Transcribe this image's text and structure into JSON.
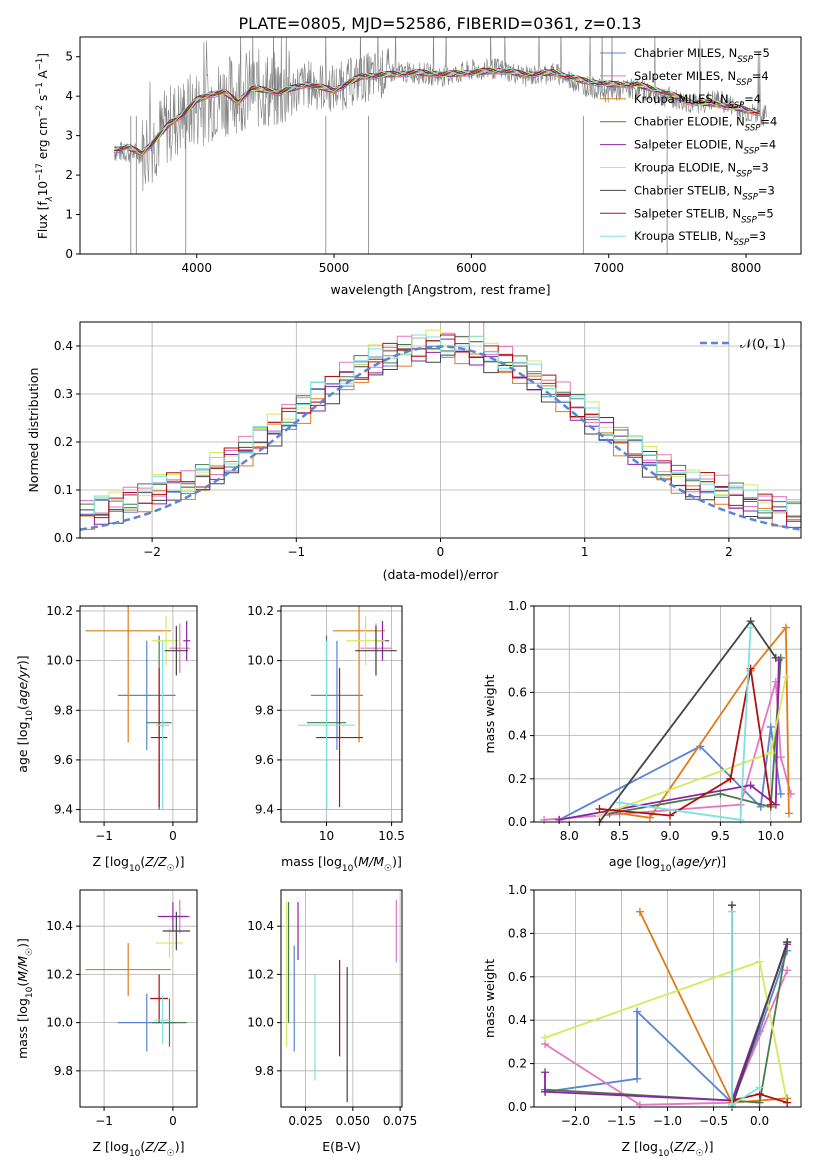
{
  "figure_title": "PLATE=0805, MJD=52586, FIBERID=0361, z=0.13",
  "colors": {
    "chabrier_miles": "#5b84d4",
    "salpeter_miles": "#e377c2",
    "kroupa_miles": "#e07b1a",
    "chabrier_elodie": "#4a7a4a",
    "salpeter_elodie": "#8b22a8",
    "kroupa_elodie": "#d4ea5a",
    "chabrier_stelib": "#444444",
    "salpeter_stelib": "#b21010",
    "kroupa_stelib": "#7ee0e0",
    "data": "#808080",
    "grid": "#b0b0b0"
  },
  "chart_data": [
    {
      "type": "line",
      "title": "PLATE=0805, MJD=52586, FIBERID=0361, z=0.13",
      "xlabel": "wavelength [Angstrom, rest frame]",
      "ylabel": "Flux [f_λ 10⁻¹⁷ erg cm⁻² s⁻¹ A⁻¹]",
      "ylabel_parts": [
        "Flux [f",
        "λ",
        "10",
        "−17",
        " erg cm",
        "−2",
        " s",
        "−1",
        " A",
        "−1",
        "]"
      ],
      "xlim": [
        3150,
        8400
      ],
      "ylim": [
        0,
        5.5
      ],
      "xticks": [
        4000,
        5000,
        6000,
        7000,
        8000
      ],
      "yticks": [
        0,
        1,
        2,
        3,
        4,
        5
      ],
      "grid": false,
      "legend_position": "right",
      "data_series": {
        "x": [
          3400,
          3600,
          3800,
          4000,
          4200,
          4400,
          4600,
          4800,
          5000,
          5200,
          5400,
          5600,
          5800,
          6000,
          6200,
          6400,
          6600,
          6800,
          7000,
          7200,
          7400,
          7600,
          7800,
          8000,
          8100
        ],
        "y": [
          2.6,
          2.55,
          3.3,
          3.7,
          4.0,
          4.2,
          4.1,
          4.3,
          4.2,
          4.45,
          4.6,
          4.6,
          4.5,
          4.65,
          4.7,
          4.5,
          4.6,
          4.3,
          4.1,
          4.2,
          4.0,
          3.8,
          3.9,
          3.6,
          3.5
        ]
      },
      "model_series": [
        {
          "name": "Chabrier MILES, N_SSP=5",
          "name_parts": [
            "Chabrier MILES, N",
            "SSP",
            "=5"
          ],
          "color_key": "chabrier_miles"
        },
        {
          "name": "Salpeter MILES, N_SSP=4",
          "name_parts": [
            "Salpeter MILES, N",
            "SSP",
            "=4"
          ],
          "color_key": "salpeter_miles"
        },
        {
          "name": "Kroupa MILES, N_SSP=4",
          "name_parts": [
            "Kroupa MILES, N",
            "SSP",
            "=4"
          ],
          "color_key": "kroupa_miles"
        },
        {
          "name": "Chabrier ELODIE, N_SSP=4",
          "name_parts": [
            "Chabrier ELODIE, N",
            "SSP",
            "=4"
          ],
          "color_key": "chabrier_elodie"
        },
        {
          "name": "Salpeter ELODIE, N_SSP=4",
          "name_parts": [
            "Salpeter ELODIE, N",
            "SSP",
            "=4"
          ],
          "color_key": "salpeter_elodie"
        },
        {
          "name": "Kroupa ELODIE, N_SSP=3",
          "name_parts": [
            "Kroupa ELODIE, N",
            "SSP",
            "=3"
          ],
          "color_key": "kroupa_elodie"
        },
        {
          "name": "Chabrier STELIB, N_SSP=3",
          "name_parts": [
            "Chabrier STELIB, N",
            "SSP",
            "=3"
          ],
          "color_key": "chabrier_stelib"
        },
        {
          "name": "Salpeter STELIB, N_SSP=5",
          "name_parts": [
            "Salpeter STELIB, N",
            "SSP",
            "=5"
          ],
          "color_key": "salpeter_stelib"
        },
        {
          "name": "Kroupa STELIB, N_SSP=3",
          "name_parts": [
            "Kroupa STELIB, N",
            "SSP",
            "=3"
          ],
          "color_key": "kroupa_stelib"
        }
      ],
      "model_x": [
        3400,
        3500,
        3600,
        3700,
        3800,
        3900,
        4000,
        4100,
        4200,
        4300,
        4400,
        4600,
        4800,
        5000,
        5200,
        5400,
        5600,
        5800,
        6000,
        6200,
        6400,
        6600,
        6800,
        7000,
        7200,
        7400,
        7600,
        7800,
        8000,
        8100
      ],
      "model_y": [
        2.65,
        2.7,
        2.55,
        2.9,
        3.3,
        3.55,
        3.9,
        4.05,
        4.1,
        3.85,
        4.2,
        4.1,
        4.3,
        4.15,
        4.5,
        4.55,
        4.6,
        4.55,
        4.6,
        4.65,
        4.55,
        4.6,
        4.4,
        4.3,
        4.3,
        4.1,
        3.85,
        3.8,
        3.65,
        3.6
      ]
    },
    {
      "type": "histogram",
      "xlabel": "(data-model)/error",
      "ylabel": "Normed distribution",
      "xlim": [
        -2.5,
        2.5
      ],
      "ylim": [
        0,
        0.45
      ],
      "xticks": [
        -2,
        -1,
        0,
        1,
        2
      ],
      "xticklabels": [
        "−2",
        "−1",
        "0",
        "1",
        "2"
      ],
      "yticks": [
        0.0,
        0.1,
        0.2,
        0.3,
        0.4
      ],
      "yticklabels": [
        "0.0",
        "0.1",
        "0.2",
        "0.3",
        "0.4"
      ],
      "grid": true,
      "legend": "𝒩(0, 1)",
      "legend_position": "top-right",
      "bin_width": 0.1,
      "bin_start": -2.5,
      "base_curve": "normal pdf",
      "series_offsets": [
        0.0,
        0.012,
        -0.01,
        0.008,
        -0.006,
        0.015,
        -0.012,
        0.005,
        0.01
      ]
    },
    {
      "type": "scatter",
      "xlabel": "Z [log10(Z/Z☉)]",
      "ylabel": "age [log10(age/yr)]",
      "xlim": [
        -1.35,
        0.35
      ],
      "ylim": [
        9.35,
        10.22
      ],
      "xticks": [
        -1,
        0
      ],
      "yticks": [
        9.4,
        9.6,
        9.8,
        10.0,
        10.2
      ],
      "points": [
        {
          "color_key": "chabrier_miles",
          "x": -0.38,
          "xerr": 0.42,
          "y": 9.86,
          "yerr": 0.22
        },
        {
          "color_key": "kroupa_miles",
          "x": -0.65,
          "xerr": 0.62,
          "y": 10.12,
          "yerr": 0.45
        },
        {
          "color_key": "salpeter_miles",
          "x": 0.1,
          "xerr": 0.15,
          "y": 10.05,
          "yerr": 0.1
        },
        {
          "color_key": "chabrier_elodie",
          "x": -0.2,
          "xerr": 0.18,
          "y": 9.75,
          "yerr": 0.35
        },
        {
          "color_key": "salpeter_elodie",
          "x": 0.2,
          "xerr": 0.05,
          "y": 10.08,
          "yerr": 0.08
        },
        {
          "color_key": "kroupa_elodie",
          "x": -0.1,
          "xerr": 0.2,
          "y": 10.08,
          "yerr": 0.1
        },
        {
          "color_key": "chabrier_stelib",
          "x": 0.05,
          "xerr": 0.17,
          "y": 10.04,
          "yerr": 0.1
        },
        {
          "color_key": "salpeter_stelib",
          "x": -0.2,
          "xerr": 0.12,
          "y": 9.69,
          "yerr": 0.28
        },
        {
          "color_key": "kroupa_stelib",
          "x": -0.15,
          "xerr": 0.1,
          "y": 9.74,
          "yerr": 0.34
        }
      ]
    },
    {
      "type": "scatter",
      "xlabel": "mass [log10(M/M☉)]",
      "xlim": [
        9.65,
        10.58
      ],
      "ylim": [
        9.35,
        10.22
      ],
      "xticks": [
        10.0,
        10.5
      ],
      "yticks": [
        9.4,
        9.6,
        9.8,
        10.0,
        10.2
      ],
      "points": [
        {
          "color_key": "chabrier_miles",
          "x": 10.08,
          "xerr": 0.2,
          "y": 9.86,
          "yerr": 0.22
        },
        {
          "color_key": "kroupa_miles",
          "x": 10.25,
          "xerr": 0.2,
          "y": 10.12,
          "yerr": 0.45
        },
        {
          "color_key": "salpeter_miles",
          "x": 10.38,
          "xerr": 0.12,
          "y": 10.05,
          "yerr": 0.1
        },
        {
          "color_key": "chabrier_elodie",
          "x": 10.0,
          "xerr": 0.15,
          "y": 9.75,
          "yerr": 0.35
        },
        {
          "color_key": "salpeter_elodie",
          "x": 10.43,
          "xerr": 0.05,
          "y": 10.08,
          "yerr": 0.08
        },
        {
          "color_key": "kroupa_elodie",
          "x": 10.3,
          "xerr": 0.15,
          "y": 10.08,
          "yerr": 0.1
        },
        {
          "color_key": "chabrier_stelib",
          "x": 10.38,
          "xerr": 0.16,
          "y": 10.04,
          "yerr": 0.1
        },
        {
          "color_key": "salpeter_stelib",
          "x": 10.1,
          "xerr": 0.18,
          "y": 9.69,
          "yerr": 0.28
        },
        {
          "color_key": "kroupa_stelib",
          "x": 10.0,
          "xerr": 0.22,
          "y": 9.74,
          "yerr": 0.34
        }
      ]
    },
    {
      "type": "line",
      "xlabel": "age [log10(age/yr)]",
      "ylabel": "mass weight",
      "xlim": [
        7.65,
        10.3
      ],
      "ylim": [
        0,
        1
      ],
      "xticks": [
        8.0,
        8.5,
        9.0,
        9.5,
        10.0
      ],
      "xticklabels": [
        "8.0",
        "8.5",
        "9.0",
        "9.5",
        "10.0"
      ],
      "yticks": [
        0.0,
        0.2,
        0.4,
        0.6,
        0.8,
        1.0
      ],
      "yticklabels": [
        "0.0",
        "0.2",
        "0.4",
        "0.6",
        "0.8",
        "1.0"
      ],
      "grid": true,
      "series": [
        {
          "color_key": "chabrier_miles",
          "x": [
            7.9,
            9.3,
            9.9,
            10.0,
            10.1
          ],
          "y": [
            0.01,
            0.35,
            0.07,
            0.44,
            0.13
          ]
        },
        {
          "color_key": "salpeter_miles",
          "x": [
            7.75,
            9.7,
            10.05,
            10.1,
            10.2
          ],
          "y": [
            0.01,
            0.08,
            0.65,
            0.3,
            0.13
          ]
        },
        {
          "color_key": "kroupa_miles",
          "x": [
            8.5,
            8.8,
            9.8,
            10.15,
            10.18
          ],
          "y": [
            0.04,
            0.02,
            0.7,
            0.9,
            0.04
          ]
        },
        {
          "color_key": "chabrier_elodie",
          "x": [
            8.4,
            9.5,
            10.0,
            10.1
          ],
          "y": [
            0.04,
            0.13,
            0.07,
            0.76
          ]
        },
        {
          "color_key": "salpeter_elodie",
          "x": [
            7.9,
            9.8,
            10.05,
            10.08
          ],
          "y": [
            0.01,
            0.17,
            0.08,
            0.75
          ]
        },
        {
          "color_key": "kroupa_elodie",
          "x": [
            8.3,
            10.0,
            10.15
          ],
          "y": [
            0.03,
            0.32,
            0.67
          ]
        },
        {
          "color_key": "chabrier_stelib",
          "x": [
            8.3,
            9.8,
            10.05
          ],
          "y": [
            0.0,
            0.93,
            0.76
          ]
        },
        {
          "color_key": "salpeter_stelib",
          "x": [
            8.3,
            9.0,
            9.6,
            9.8,
            10.0
          ],
          "y": [
            0.06,
            0.03,
            0.2,
            0.71,
            0.08
          ]
        },
        {
          "color_key": "kroupa_stelib",
          "x": [
            8.5,
            9.7,
            9.8
          ],
          "y": [
            0.09,
            0.01,
            0.9
          ]
        }
      ]
    },
    {
      "type": "scatter",
      "xlabel": "Z [log10(Z/Z☉)]",
      "ylabel": "mass [log10(M/M☉)]",
      "xlim": [
        -1.35,
        0.35
      ],
      "ylim": [
        9.65,
        10.55
      ],
      "xticks": [
        -1,
        0
      ],
      "yticks": [
        9.8,
        10.0,
        10.2,
        10.4
      ],
      "points": [
        {
          "color_key": "chabrier_miles",
          "x": -0.38,
          "xerr": 0.42,
          "y": 10.0,
          "yerr": 0.12
        },
        {
          "color_key": "kroupa_miles",
          "x": -0.65,
          "xerr": 0.62,
          "y": 10.22,
          "yerr": 0.11
        },
        {
          "color_key": "salpeter_miles",
          "x": 0.1,
          "xerr": 0.15,
          "y": 10.44,
          "yerr": 0.07
        },
        {
          "color_key": "chabrier_elodie",
          "x": -0.05,
          "xerr": 0.25,
          "y": 10.0,
          "yerr": 0.1
        },
        {
          "color_key": "salpeter_elodie",
          "x": 0.0,
          "xerr": 0.22,
          "y": 10.44,
          "yerr": 0.06
        },
        {
          "color_key": "kroupa_elodie",
          "x": -0.05,
          "xerr": 0.2,
          "y": 10.33,
          "yerr": 0.06
        },
        {
          "color_key": "chabrier_stelib",
          "x": 0.05,
          "xerr": 0.2,
          "y": 10.38,
          "yerr": 0.08
        },
        {
          "color_key": "salpeter_stelib",
          "x": -0.2,
          "xerr": 0.13,
          "y": 10.1,
          "yerr": 0.1
        },
        {
          "color_key": "kroupa_stelib",
          "x": -0.15,
          "xerr": 0.12,
          "y": 10.01,
          "yerr": 0.1
        }
      ]
    },
    {
      "type": "errorbar",
      "xlabel": "E(B-V)",
      "xlim": [
        0.012,
        0.076
      ],
      "ylim": [
        9.65,
        10.55
      ],
      "xticks": [
        0.025,
        0.05,
        0.075
      ],
      "xticklabels": [
        "0.025",
        "0.050",
        "0.075"
      ],
      "yticks": [
        9.8,
        10.0,
        10.2,
        10.4
      ],
      "bars": [
        {
          "color_key": "kroupa_elodie",
          "x": 0.015,
          "y": 10.2,
          "yerr": 0.3
        },
        {
          "color_key": "chabrier_elodie",
          "x": 0.016,
          "y": 10.25,
          "yerr": 0.25
        },
        {
          "color_key": "chabrier_miles",
          "x": 0.019,
          "y": 10.1,
          "yerr": 0.22
        },
        {
          "color_key": "salpeter_elodie",
          "x": 0.021,
          "y": 10.38,
          "yerr": 0.12
        },
        {
          "color_key": "kroupa_stelib",
          "x": 0.03,
          "y": 9.98,
          "yerr": 0.22
        },
        {
          "color_key": "salpeter_stelib",
          "x": 0.043,
          "y": 10.06,
          "yerr": 0.2
        },
        {
          "color_key": "chabrier_stelib",
          "x": 0.047,
          "y": 9.95,
          "yerr": 0.28
        },
        {
          "color_key": "salpeter_miles",
          "x": 0.073,
          "y": 10.38,
          "yerr": 0.13
        }
      ]
    },
    {
      "type": "line",
      "xlabel": "Z [log10(Z/Z☉)]",
      "ylabel": "mass weight",
      "xlim": [
        -2.45,
        0.45
      ],
      "ylim": [
        0,
        1
      ],
      "xticks": [
        -2.0,
        -1.5,
        -1.0,
        -0.5,
        0.0
      ],
      "xticklabels": [
        "−2.0",
        "−1.5",
        "−1.0",
        "−0.5",
        "0.0"
      ],
      "yticks": [
        0.0,
        0.2,
        0.4,
        0.6,
        0.8,
        1.0
      ],
      "yticklabels": [
        "0.0",
        "0.2",
        "0.4",
        "0.6",
        "0.8",
        "1.0"
      ],
      "grid": true,
      "series": [
        {
          "color_key": "chabrier_miles",
          "x": [
            -2.33,
            -1.33,
            -1.33,
            -0.3,
            0.0,
            0.3
          ],
          "y": [
            0.07,
            0.13,
            0.44,
            0.02,
            0.35,
            0.72
          ]
        },
        {
          "color_key": "salpeter_miles",
          "x": [
            -2.33,
            -1.3,
            -0.3,
            0.3
          ],
          "y": [
            0.29,
            0.01,
            0.02,
            0.63
          ]
        },
        {
          "color_key": "kroupa_miles",
          "x": [
            -1.3,
            -0.3,
            0.3
          ],
          "y": [
            0.9,
            0.02,
            0.04
          ]
        },
        {
          "color_key": "chabrier_elodie",
          "x": [
            -2.33,
            -0.3,
            0.0,
            0.3
          ],
          "y": [
            0.08,
            0.03,
            0.02,
            0.76
          ]
        },
        {
          "color_key": "salpeter_elodie",
          "x": [
            -2.33,
            -2.33,
            -0.3,
            0.3
          ],
          "y": [
            0.16,
            0.07,
            0.03,
            0.75
          ]
        },
        {
          "color_key": "kroupa_elodie",
          "x": [
            -2.33,
            0.0,
            0.3
          ],
          "y": [
            0.32,
            0.67,
            0.02
          ]
        },
        {
          "color_key": "chabrier_stelib",
          "x": [
            -0.3,
            -0.3,
            0.3
          ],
          "y": [
            0.93,
            0.0,
            0.76
          ]
        },
        {
          "color_key": "salpeter_stelib",
          "x": [
            -0.3,
            0.0,
            0.3
          ],
          "y": [
            0.03,
            0.06,
            0.02
          ]
        },
        {
          "color_key": "kroupa_stelib",
          "x": [
            -0.3,
            -0.3,
            0.0
          ],
          "y": [
            0.9,
            0.01,
            0.09
          ]
        }
      ]
    }
  ]
}
